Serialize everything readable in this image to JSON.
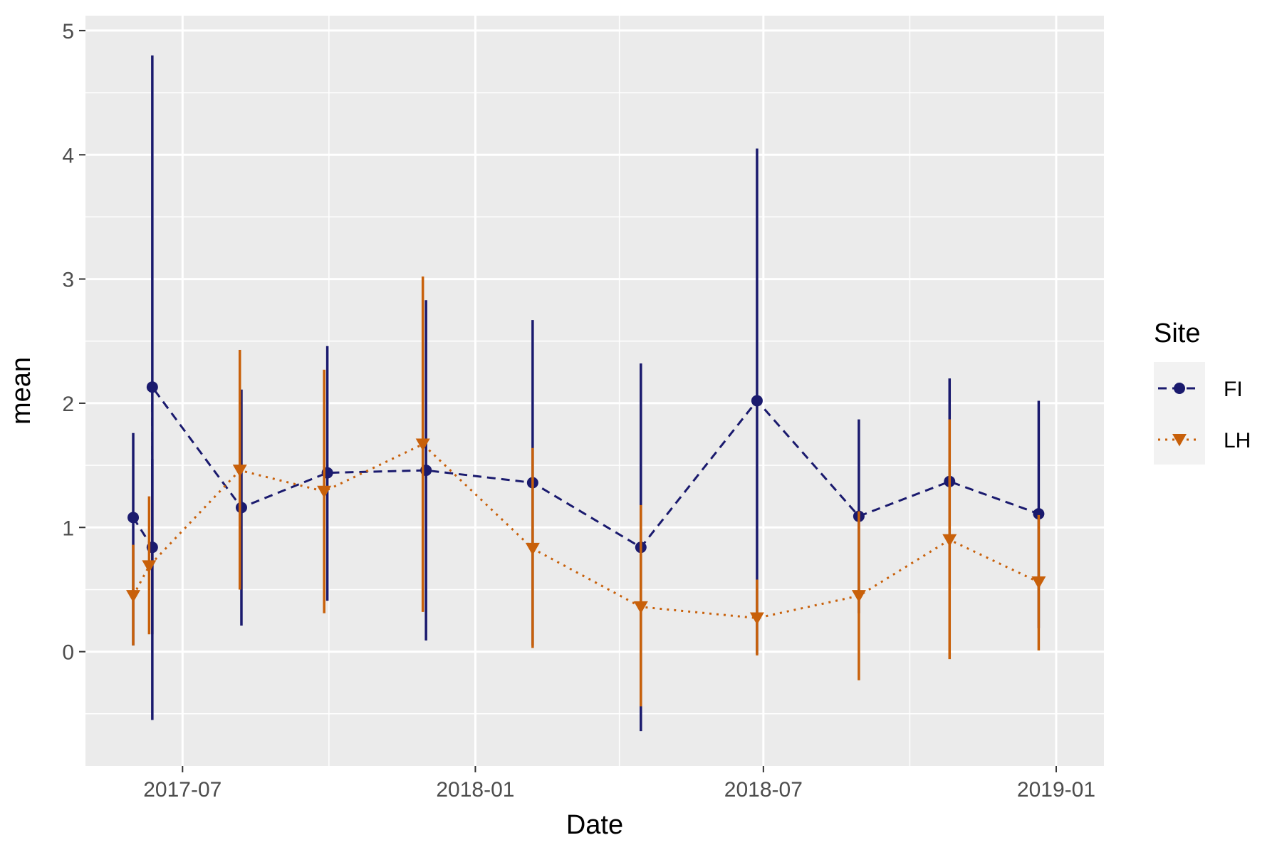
{
  "chart_data": {
    "type": "line",
    "xlabel": "Date",
    "ylabel": "mean",
    "x_axis_type": "date",
    "xlim": [
      "2017-05-01",
      "2019-01-31"
    ],
    "ylim": [
      -0.92,
      5.12
    ],
    "x_ticks": [
      "2017-07-01",
      "2018-01-01",
      "2018-07-01",
      "2019-01-01"
    ],
    "x_tick_labels": [
      "2017-07",
      "2018-01",
      "2018-07",
      "2019-01"
    ],
    "y_ticks": [
      0,
      1,
      2,
      3,
      4,
      5
    ],
    "y_tick_labels": [
      "0",
      "1",
      "2",
      "3",
      "4",
      "5"
    ],
    "grid": true,
    "background": "#ebebeb",
    "legend": {
      "title": "Site",
      "position": "right"
    },
    "series": [
      {
        "name": "FI",
        "color": "#1a1a6e",
        "marker": "circle",
        "line_style": "dashed",
        "points": [
          {
            "x": "2017-05-31",
            "y": 1.08,
            "lo": 0.05,
            "hi": 1.76
          },
          {
            "x": "2017-06-12",
            "y": 0.84,
            "lo": 0.14,
            "hi": 1.55
          },
          {
            "x": "2017-06-12",
            "y": 2.13,
            "lo": -0.55,
            "hi": 4.8
          },
          {
            "x": "2017-08-07",
            "y": 1.16,
            "lo": 0.21,
            "hi": 2.11
          },
          {
            "x": "2017-09-30",
            "y": 1.44,
            "lo": 0.41,
            "hi": 2.46
          },
          {
            "x": "2017-12-01",
            "y": 1.46,
            "lo": 0.09,
            "hi": 2.83
          },
          {
            "x": "2018-02-06",
            "y": 1.36,
            "lo": 0.05,
            "hi": 2.67
          },
          {
            "x": "2018-04-15",
            "y": 0.84,
            "lo": -0.64,
            "hi": 2.32
          },
          {
            "x": "2018-06-27",
            "y": 2.02,
            "lo": -0.02,
            "hi": 4.05
          },
          {
            "x": "2018-08-30",
            "y": 1.09,
            "lo": 0.31,
            "hi": 1.87
          },
          {
            "x": "2018-10-26",
            "y": 1.37,
            "lo": 0.54,
            "hi": 2.2
          },
          {
            "x": "2018-12-21",
            "y": 1.11,
            "lo": 0.19,
            "hi": 2.02
          }
        ]
      },
      {
        "name": "LH",
        "color": "#c8600a",
        "marker": "triangle-down",
        "line_style": "dotted",
        "points": [
          {
            "x": "2017-05-31",
            "y": 0.45,
            "lo": 0.05,
            "hi": 0.86
          },
          {
            "x": "2017-06-10",
            "y": 0.69,
            "lo": 0.14,
            "hi": 1.25
          },
          {
            "x": "2017-08-06",
            "y": 1.46,
            "lo": 0.5,
            "hi": 2.43
          },
          {
            "x": "2017-09-28",
            "y": 1.29,
            "lo": 0.31,
            "hi": 2.27
          },
          {
            "x": "2017-11-29",
            "y": 1.67,
            "lo": 0.32,
            "hi": 3.02
          },
          {
            "x": "2018-02-06",
            "y": 0.83,
            "lo": 0.03,
            "hi": 1.64
          },
          {
            "x": "2018-04-15",
            "y": 0.36,
            "lo": -0.44,
            "hi": 1.18
          },
          {
            "x": "2018-06-27",
            "y": 0.27,
            "lo": -0.03,
            "hi": 0.58
          },
          {
            "x": "2018-08-30",
            "y": 0.45,
            "lo": -0.23,
            "hi": 1.13
          },
          {
            "x": "2018-10-26",
            "y": 0.9,
            "lo": -0.06,
            "hi": 1.87
          },
          {
            "x": "2018-12-21",
            "y": 0.56,
            "lo": 0.01,
            "hi": 1.1
          }
        ]
      }
    ]
  }
}
